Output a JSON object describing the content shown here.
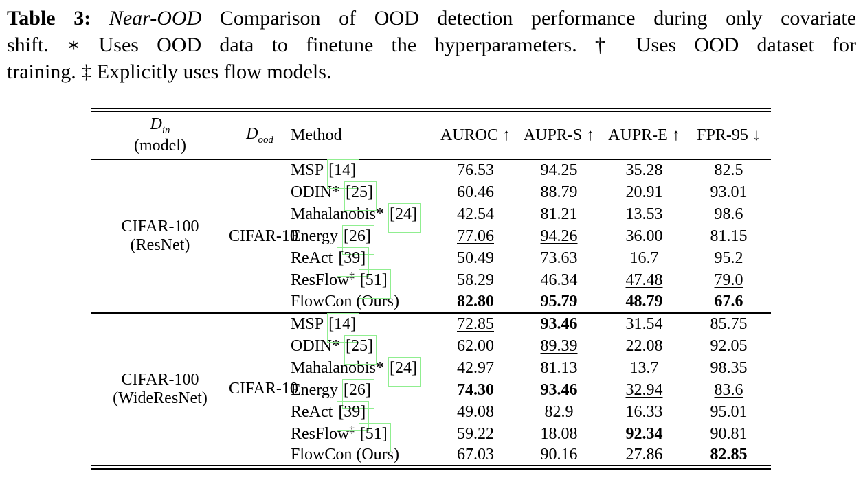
{
  "colors": {
    "citation_box_green": "#90ee90"
  },
  "caption": {
    "line1": {
      "label": "Table 3:",
      "emphasis": "Near-OOD",
      "text": "Comparison of OOD detection performance during only covariate"
    },
    "line2": "shift. ∗ Uses OOD data to finetune the hyperparameters. † Uses OOD dataset for",
    "line3": "training. ‡ Explicitly uses flow models."
  },
  "table": {
    "header": {
      "din_symbol": "D",
      "din_sub": "in",
      "din_line2": "(model)",
      "dood_symbol": "D",
      "dood_sub": "ood",
      "method": "Method",
      "metrics": [
        "AUROC ↑",
        "AUPR-S ↑",
        "AUPR-E ↑",
        "FPR-95 ↓"
      ]
    },
    "sections": [
      {
        "din": "CIFAR-100",
        "din_model": "(ResNet)",
        "dood": "CIFAR-10",
        "rows": [
          {
            "method": "MSP",
            "cite": "[14]",
            "cells": [
              {
                "t": "76.53",
                "s": "n"
              },
              {
                "t": "94.25",
                "s": "n"
              },
              {
                "t": "35.28",
                "s": "n"
              },
              {
                "t": "82.5",
                "s": "n"
              }
            ]
          },
          {
            "method": "ODIN*",
            "cite": "[25]",
            "cells": [
              {
                "t": "60.46",
                "s": "n"
              },
              {
                "t": "88.79",
                "s": "n"
              },
              {
                "t": "20.91",
                "s": "n"
              },
              {
                "t": "93.01",
                "s": "n"
              }
            ]
          },
          {
            "method": "Mahalanobis*",
            "cite": "[24]",
            "cells": [
              {
                "t": "42.54",
                "s": "n"
              },
              {
                "t": "81.21",
                "s": "n"
              },
              {
                "t": "13.53",
                "s": "n"
              },
              {
                "t": "98.6",
                "s": "n"
              }
            ]
          },
          {
            "method": "Energy",
            "cite": "[26]",
            "cells": [
              {
                "t": "77.06",
                "s": "u"
              },
              {
                "t": "94.26",
                "s": "u"
              },
              {
                "t": "36.00",
                "s": "n"
              },
              {
                "t": "81.15",
                "s": "n"
              }
            ]
          },
          {
            "method": "ReAct",
            "cite": "[39]",
            "cells": [
              {
                "t": "50.49",
                "s": "n"
              },
              {
                "t": "73.63",
                "s": "n"
              },
              {
                "t": "16.7",
                "s": "n"
              },
              {
                "t": "95.2",
                "s": "n"
              }
            ]
          },
          {
            "method": "ResFlow",
            "sup": "‡",
            "cite": "[51]",
            "cells": [
              {
                "t": "58.29",
                "s": "n"
              },
              {
                "t": "46.34",
                "s": "n"
              },
              {
                "t": "47.48",
                "s": "u"
              },
              {
                "t": "79.0",
                "s": "u"
              }
            ]
          },
          {
            "method": "FlowCon (Ours)",
            "cells": [
              {
                "t": "82.80",
                "s": "b"
              },
              {
                "t": "95.79",
                "s": "b"
              },
              {
                "t": "48.79",
                "s": "b"
              },
              {
                "t": "67.6",
                "s": "b"
              }
            ]
          }
        ]
      },
      {
        "din": "CIFAR-100",
        "din_model": "(WideResNet)",
        "dood": "CIFAR-10",
        "rows": [
          {
            "method": "MSP",
            "cite": "[14]",
            "cells": [
              {
                "t": "72.85",
                "s": "u"
              },
              {
                "t": "93.46",
                "s": "b"
              },
              {
                "t": "31.54",
                "s": "n"
              },
              {
                "t": "85.75",
                "s": "n"
              }
            ]
          },
          {
            "method": "ODIN*",
            "cite": "[25]",
            "cells": [
              {
                "t": "62.00",
                "s": "n"
              },
              {
                "t": "89.39",
                "s": "u"
              },
              {
                "t": "22.08",
                "s": "n"
              },
              {
                "t": "92.05",
                "s": "n"
              }
            ]
          },
          {
            "method": "Mahalanobis*",
            "cite": "[24]",
            "cells": [
              {
                "t": "42.97",
                "s": "n"
              },
              {
                "t": "81.13",
                "s": "n"
              },
              {
                "t": "13.7",
                "s": "n"
              },
              {
                "t": "98.35",
                "s": "n"
              }
            ]
          },
          {
            "method": "Energy",
            "cite": "[26]",
            "cells": [
              {
                "t": "74.30",
                "s": "b"
              },
              {
                "t": "93.46",
                "s": "b"
              },
              {
                "t": "32.94",
                "s": "u"
              },
              {
                "t": "83.6",
                "s": "u"
              }
            ]
          },
          {
            "method": "ReAct",
            "cite": "[39]",
            "cells": [
              {
                "t": "49.08",
                "s": "n"
              },
              {
                "t": "82.9",
                "s": "n"
              },
              {
                "t": "16.33",
                "s": "n"
              },
              {
                "t": "95.01",
                "s": "n"
              }
            ]
          },
          {
            "method": "ResFlow",
            "sup": "‡",
            "cite": "[51]",
            "cells": [
              {
                "t": "59.22",
                "s": "n"
              },
              {
                "t": "18.08",
                "s": "n"
              },
              {
                "t": "92.34",
                "s": "b"
              },
              {
                "t": "90.81",
                "s": "n"
              }
            ]
          },
          {
            "method": "FlowCon (Ours)",
            "cells": [
              {
                "t": "67.03",
                "s": "n"
              },
              {
                "t": "90.16",
                "s": "n"
              },
              {
                "t": "27.86",
                "s": "n"
              },
              {
                "t": "82.85",
                "s": "b"
              }
            ]
          }
        ]
      }
    ]
  }
}
